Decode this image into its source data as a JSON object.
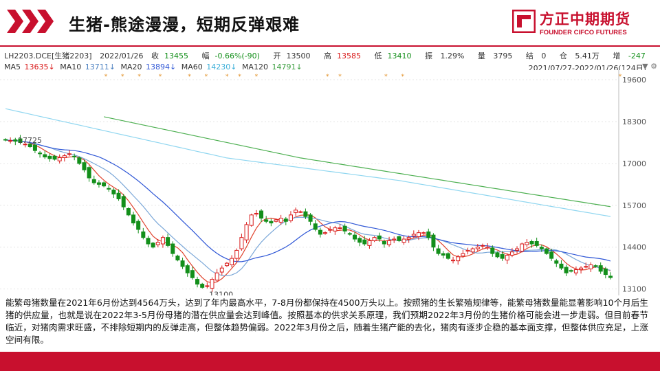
{
  "header": {
    "title": "生猪-熊途漫漫，短期反弹艰难",
    "logo_cn": "方正中期期货",
    "logo_en": "FOUNDER CIFCO FUTURES"
  },
  "quote": {
    "symbol": "LH2203.DCE[生猪2203]",
    "date": "2022/01/26",
    "close_label": "收",
    "close": "13455",
    "change_label": "幅",
    "change": "-0.66%(-90)",
    "open_label": "开",
    "open": "13500",
    "high_label": "高",
    "high": "13585",
    "low_label": "低",
    "low": "13410",
    "amplitude_label": "振",
    "amplitude": "1.29%",
    "volume_label": "量",
    "volume": "3795",
    "settle_label": "结",
    "settle": "0",
    "oi_label": "仓",
    "oi": "5.41万",
    "oi_change_label": "增",
    "oi_change": "-247"
  },
  "ma": {
    "ma5_label": "MA5",
    "ma5": "13635↓",
    "ma10_label": "MA10",
    "ma10": "13711↓",
    "ma20_label": "MA20",
    "ma20": "13894↓",
    "ma60_label": "MA60",
    "ma60": "14230↓",
    "ma120_label": "MA120",
    "ma120": "14791↓",
    "range": "2021/07/27-2022/01/26(124日)"
  },
  "description": "能繁母猪数量在2021年6月份达到4564万头，达到了年内最高水平，7-8月份都保持在4500万头以上。按照猪的生长繁殖规律等，能繁母猪数量能显著影响10个月后生猪的供应量，也就是说在2022年3-5月份母猪的潜在供应量会达到峰值。按照基本的供求关系原理，我们预期2022年3月份的生猪价格可能会进一步走弱。但目前春节临近，对猪肉需求旺盛，不排除短期内的反弹走高，但整体趋势偏弱。2022年3月份之后，随着生猪产能的去化，猪肉有逐步企稳的基本面支撑，但整体供应充足，上涨空间有限。",
  "chart_data": {
    "type": "candlestick",
    "x_range": [
      "2021/07/27",
      "2022/01/26"
    ],
    "ylim": [
      12900,
      19900
    ],
    "yticks": [
      19600,
      18300,
      17000,
      15700,
      14400,
      13100
    ],
    "annotations": [
      {
        "label": "17725",
        "value": 17725
      },
      {
        "label": "13100",
        "value": 13100
      }
    ],
    "colors": {
      "up": "#d91a1a",
      "down": "#138f1a",
      "ma5": "#e0442e",
      "ma10": "#7aa7d8",
      "ma20": "#2f57d6",
      "ma60": "#8fd6f0",
      "ma120": "#4caf50"
    },
    "closes": [
      17725,
      17710,
      17690,
      17650,
      17600,
      17520,
      17400,
      17300,
      17200,
      17150,
      17130,
      17180,
      17240,
      17300,
      17200,
      17000,
      16800,
      16550,
      16400,
      16350,
      16300,
      16200,
      16050,
      15900,
      15650,
      15400,
      15150,
      14950,
      14700,
      14500,
      14400,
      14550,
      14700,
      14450,
      14200,
      14000,
      13800,
      13600,
      13450,
      13250,
      13150,
      13200,
      13400,
      13600,
      13750,
      13900,
      14050,
      14300,
      14700,
      15100,
      15400,
      15450,
      15300,
      15200,
      15150,
      15250,
      15300,
      15200,
      15400,
      15550,
      15500,
      15350,
      15200,
      14950,
      14800,
      14850,
      14950,
      15000,
      15000,
      14900,
      14800,
      14650,
      14550,
      14500,
      14600,
      14700,
      14650,
      14500,
      14600,
      14650,
      14600,
      14650,
      14700,
      14800,
      14850,
      14850,
      14700,
      14400,
      14200,
      14150,
      14050,
      14000,
      14100,
      14200,
      14300,
      14350,
      14400,
      14450,
      14400,
      14200,
      14100,
      14050,
      14150,
      14250,
      14350,
      14500,
      14550,
      14500,
      14450,
      14350,
      14200,
      14050,
      13900,
      13750,
      13600,
      13650,
      13700,
      13750,
      13800,
      13850,
      13800,
      13650,
      13550,
      13455
    ],
    "annotation_note": ""
  }
}
